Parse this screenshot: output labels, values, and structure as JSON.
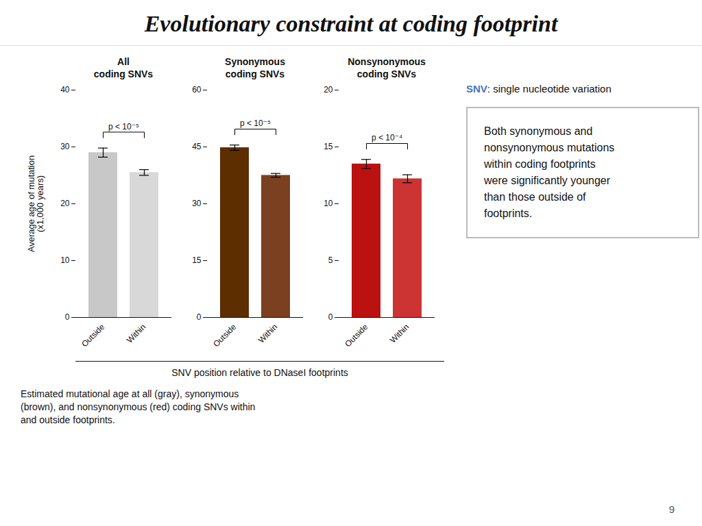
{
  "title": "Evolutionary constraint at coding footprint",
  "xlabel": "SNV position relative to DNaseI footprints",
  "annotations": [
    [
      {
        "text": "SNV",
        "color": "#4472C4"
      },
      {
        "text": ": single nucleotide variation"
      }
    ],
    "Both synonymous and\nnonsynonymous mutations\nwithin coding footprints\nwere significantly younger\nthan those outside of\nfootprints.",
    "Estimated mutational age at all (gray), synonymous\n(brown), and nonsynonymous (red) coding SNVs within\nand outside footprints.",
    "9"
  ],
  "chart_data": [
    {
      "type": "bar",
      "title": "All\ncoding SNVs",
      "categories": [
        "Outside",
        "Within"
      ],
      "values": [
        29.0,
        25.5
      ],
      "errors": [
        0.8,
        0.5
      ],
      "colors": [
        "#c8c8c8",
        "#d8d8d8"
      ],
      "ylim": [
        0,
        40
      ],
      "yticks": [
        0,
        10,
        20,
        30,
        40
      ],
      "ylabel": "Average age of mutation\n(x1,000 years)",
      "annotations": [
        "p < 10⁻⁵"
      ]
    },
    {
      "type": "bar",
      "title": "Synonymous\ncoding SNVs",
      "categories": [
        "Outside",
        "Within"
      ],
      "values": [
        44.8,
        37.5
      ],
      "errors": [
        0.7,
        0.5
      ],
      "colors": [
        "#5C2E00",
        "#7B4020"
      ],
      "ylim": [
        0,
        60
      ],
      "yticks": [
        0,
        15,
        30,
        45,
        60
      ],
      "annotations": [
        "p < 10⁻⁵"
      ]
    },
    {
      "type": "bar",
      "title": "Nonsynonymous\ncoding SNVs",
      "categories": [
        "Outside",
        "Within"
      ],
      "values": [
        13.5,
        12.2
      ],
      "errors": [
        0.4,
        0.35
      ],
      "colors": [
        "#BB1111",
        "#CC3333"
      ],
      "ylim": [
        0,
        20
      ],
      "yticks": [
        0,
        5,
        10,
        15,
        20
      ],
      "annotations": [
        "p < 10⁻⁴"
      ]
    }
  ]
}
